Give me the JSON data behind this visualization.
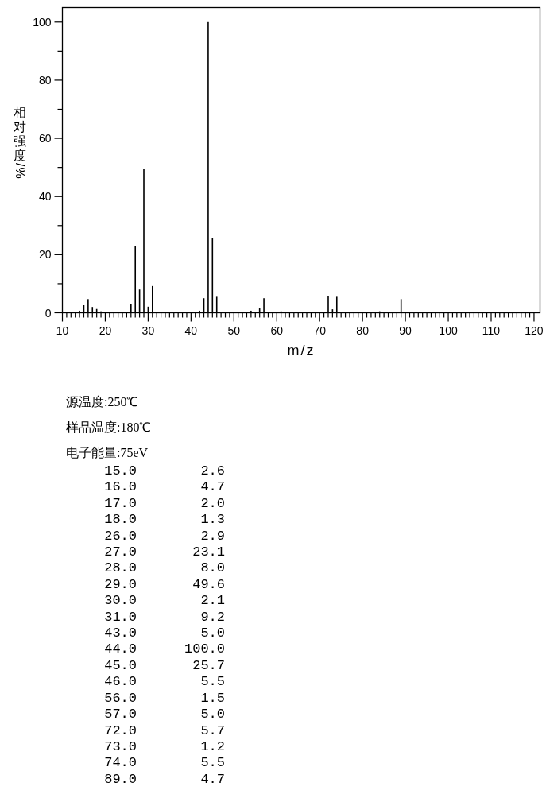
{
  "chart_data": {
    "type": "bar",
    "xlabel": "m/z",
    "ylabel": "相对强度/%",
    "color": "#000000",
    "x": [
      12,
      13,
      14,
      15,
      16,
      17,
      18,
      19,
      25,
      26,
      27,
      28,
      29,
      30,
      31,
      32,
      41,
      42,
      43,
      44,
      45,
      46,
      47,
      54,
      55,
      56,
      57,
      58,
      61,
      62,
      72,
      73,
      74,
      75,
      84,
      89,
      117,
      118
    ],
    "values": [
      0.3,
      0.3,
      0.7,
      2.6,
      4.7,
      2.0,
      1.3,
      0.5,
      0.3,
      2.9,
      23.1,
      8.0,
      49.6,
      2.1,
      9.2,
      0.3,
      0.3,
      0.7,
      5.0,
      100.0,
      25.7,
      5.5,
      0.3,
      0.7,
      0.3,
      1.5,
      5.0,
      0.3,
      0.5,
      0.3,
      5.7,
      1.2,
      5.5,
      0.3,
      0.5,
      4.7,
      0.3,
      0.3
    ],
    "xlim": [
      10,
      121.4
    ],
    "ylim": [
      0,
      105
    ],
    "xticks": [
      10,
      {
        "value": 11,
        "label": null
      },
      {
        "value": 12,
        "label": null
      },
      {
        "value": 13,
        "label": null
      },
      {
        "value": 14,
        "label": null
      },
      {
        "value": 15,
        "label": null
      },
      {
        "value": 16,
        "label": null
      },
      {
        "value": 17,
        "label": null
      },
      {
        "value": 18,
        "label": null
      },
      {
        "value": 19,
        "label": null
      },
      20,
      {
        "value": 21,
        "label": null
      },
      {
        "value": 22,
        "label": null
      },
      {
        "value": 23,
        "label": null
      },
      {
        "value": 24,
        "label": null
      },
      {
        "value": 25,
        "label": null
      },
      {
        "value": 26,
        "label": null
      },
      {
        "value": 27,
        "label": null
      },
      {
        "value": 28,
        "label": null
      },
      {
        "value": 29,
        "label": null
      },
      30,
      {
        "value": 31,
        "label": null
      },
      {
        "value": 32,
        "label": null
      },
      {
        "value": 33,
        "label": null
      },
      {
        "value": 34,
        "label": null
      },
      {
        "value": 35,
        "label": null
      },
      {
        "value": 36,
        "label": null
      },
      {
        "value": 37,
        "label": null
      },
      {
        "value": 38,
        "label": null
      },
      {
        "value": 39,
        "label": null
      },
      40,
      {
        "value": 41,
        "label": null
      },
      {
        "value": 42,
        "label": null
      },
      {
        "value": 43,
        "label": null
      },
      {
        "value": 44,
        "label": null
      },
      {
        "value": 45,
        "label": null
      },
      {
        "value": 46,
        "label": null
      },
      {
        "value": 47,
        "label": null
      },
      {
        "value": 48,
        "label": null
      },
      {
        "value": 49,
        "label": null
      },
      50,
      {
        "value": 51,
        "label": null
      },
      {
        "value": 52,
        "label": null
      },
      {
        "value": 53,
        "label": null
      },
      {
        "value": 54,
        "label": null
      },
      {
        "value": 55,
        "label": null
      },
      {
        "value": 56,
        "label": null
      },
      {
        "value": 57,
        "label": null
      },
      {
        "value": 58,
        "label": null
      },
      {
        "value": 59,
        "label": null
      },
      60,
      {
        "value": 61,
        "label": null
      },
      {
        "value": 62,
        "label": null
      },
      {
        "value": 63,
        "label": null
      },
      {
        "value": 64,
        "label": null
      },
      {
        "value": 65,
        "label": null
      },
      {
        "value": 66,
        "label": null
      },
      {
        "value": 67,
        "label": null
      },
      {
        "value": 68,
        "label": null
      },
      {
        "value": 69,
        "label": null
      },
      70,
      {
        "value": 71,
        "label": null
      },
      {
        "value": 72,
        "label": null
      },
      {
        "value": 73,
        "label": null
      },
      {
        "value": 74,
        "label": null
      },
      {
        "value": 75,
        "label": null
      },
      {
        "value": 76,
        "label": null
      },
      {
        "value": 77,
        "label": null
      },
      {
        "value": 78,
        "label": null
      },
      {
        "value": 79,
        "label": null
      },
      80,
      {
        "value": 81,
        "label": null
      },
      {
        "value": 82,
        "label": null
      },
      {
        "value": 83,
        "label": null
      },
      {
        "value": 84,
        "label": null
      },
      {
        "value": 85,
        "label": null
      },
      {
        "value": 86,
        "label": null
      },
      {
        "value": 87,
        "label": null
      },
      {
        "value": 88,
        "label": null
      },
      {
        "value": 89,
        "label": null
      },
      90,
      {
        "value": 91,
        "label": null
      },
      {
        "value": 92,
        "label": null
      },
      {
        "value": 93,
        "label": null
      },
      {
        "value": 94,
        "label": null
      },
      {
        "value": 95,
        "label": null
      },
      {
        "value": 96,
        "label": null
      },
      {
        "value": 97,
        "label": null
      },
      {
        "value": 98,
        "label": null
      },
      {
        "value": 99,
        "label": null
      },
      100,
      {
        "value": 101,
        "label": null
      },
      {
        "value": 102,
        "label": null
      },
      {
        "value": 103,
        "label": null
      },
      {
        "value": 104,
        "label": null
      },
      {
        "value": 105,
        "label": null
      },
      {
        "value": 106,
        "label": null
      },
      {
        "value": 107,
        "label": null
      },
      {
        "value": 108,
        "label": null
      },
      {
        "value": 109,
        "label": null
      },
      110,
      {
        "value": 111,
        "label": null
      },
      {
        "value": 112,
        "label": null
      },
      {
        "value": 113,
        "label": null
      },
      {
        "value": 114,
        "label": null
      },
      {
        "value": 115,
        "label": null
      },
      {
        "value": 116,
        "label": null
      },
      {
        "value": 117,
        "label": null
      },
      {
        "value": 118,
        "label": null
      },
      {
        "value": 119,
        "label": null
      },
      120
    ],
    "yticks": [
      0,
      {
        "value": 10,
        "label": null
      },
      20,
      {
        "value": 30,
        "label": null
      },
      40,
      {
        "value": 50,
        "label": null
      },
      60,
      {
        "value": 70,
        "label": null
      },
      80,
      {
        "value": 90,
        "label": null
      },
      100
    ],
    "annotations": [
      "源温度:250℃",
      "样品温度:180℃",
      "电子能量:75eV",
      "15.0",
      "2.6",
      "16.0",
      "4.7",
      "17.0",
      "2.0",
      "18.0",
      "1.3",
      "26.0",
      "2.9",
      "27.0",
      "23.1",
      "28.0",
      "8.0",
      "29.0",
      "49.6",
      "30.0",
      "2.1",
      "31.0",
      "9.2",
      "43.0",
      "5.0",
      "44.0",
      "100.0",
      "45.0",
      "25.7",
      "46.0",
      "5.5",
      "56.0",
      "1.5",
      "57.0",
      "5.0",
      "72.0",
      "5.7",
      "73.0",
      "1.2",
      "74.0",
      "5.5",
      "89.0",
      "4.7"
    ]
  }
}
